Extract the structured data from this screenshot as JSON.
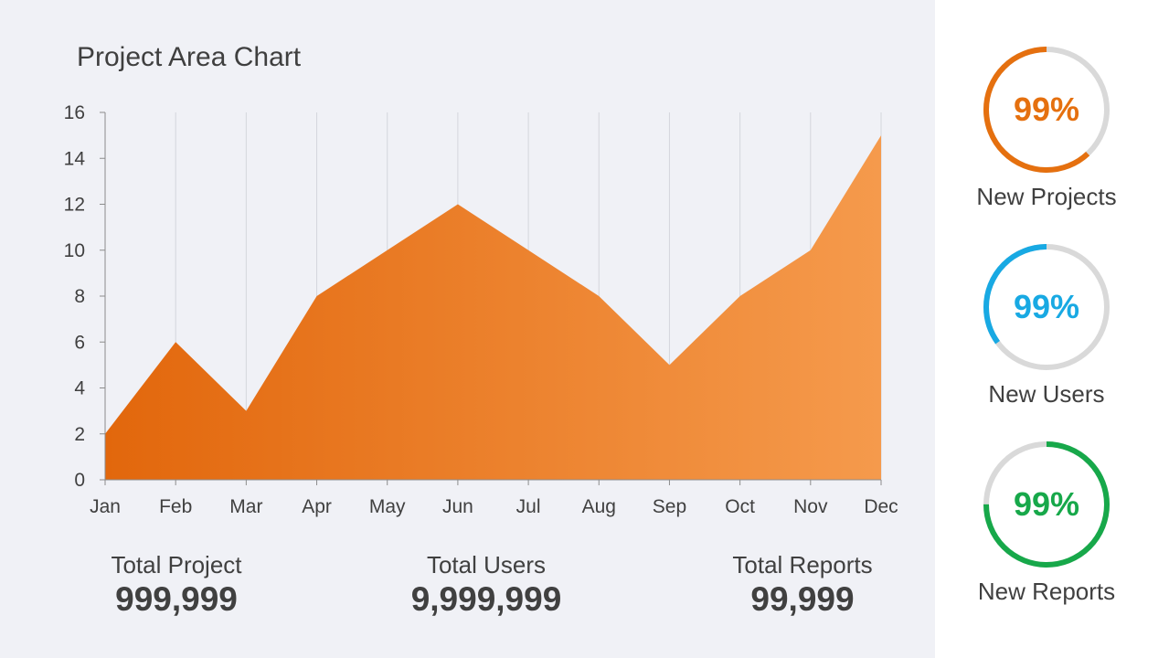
{
  "title": "Project Area Chart",
  "colors": {
    "area_start": "#e2670c",
    "area_end": "#f59a4c",
    "gauge_track": "#d9d9d9",
    "projects": "#e5700f",
    "users": "#18a9e3",
    "reports": "#17a84a"
  },
  "chart_data": {
    "type": "area",
    "title": "Project Area Chart",
    "categories": [
      "Jan",
      "Feb",
      "Mar",
      "Apr",
      "May",
      "Jun",
      "Jul",
      "Aug",
      "Sep",
      "Oct",
      "Nov",
      "Dec"
    ],
    "values": [
      2,
      6,
      3,
      8,
      10,
      12,
      10,
      8,
      5,
      8,
      10,
      15
    ],
    "xlabel": "",
    "ylabel": "",
    "ylim": [
      0,
      16
    ],
    "yticks": [
      0,
      2,
      4,
      6,
      8,
      10,
      12,
      14,
      16
    ],
    "grid": "vertical",
    "legend": "none"
  },
  "stats": [
    {
      "label": "Total Project",
      "value": "999,999"
    },
    {
      "label": "Total Users",
      "value": "9,999,999"
    },
    {
      "label": "Total Reports",
      "value": "99,999"
    }
  ],
  "gauges": [
    {
      "label": "New Projects",
      "value": "99%",
      "color": "#e5700f"
    },
    {
      "label": "New Users",
      "value": "99%",
      "color": "#18a9e3"
    },
    {
      "label": "New Reports",
      "value": "99%",
      "color": "#17a84a"
    }
  ]
}
